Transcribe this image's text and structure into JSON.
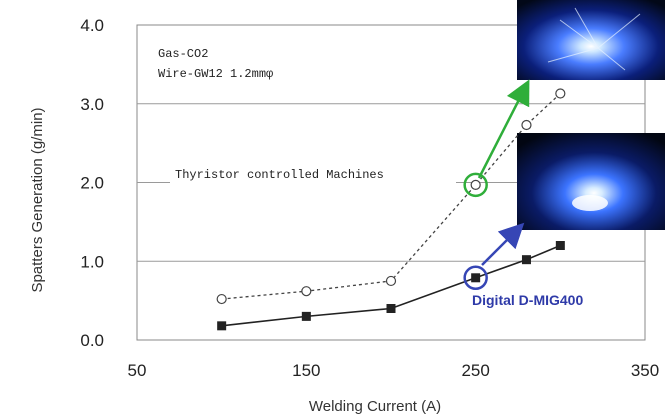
{
  "chart_data": {
    "type": "line",
    "xlabel": "Welding Current (A)",
    "ylabel": "Spatters Generation (g/min)",
    "xlim": [
      50,
      350
    ],
    "ylim": [
      0,
      4
    ],
    "x_ticks": [
      "50",
      "150",
      "250",
      "350"
    ],
    "y_ticks": [
      "0.0",
      "1.0",
      "2.0",
      "3.0",
      "4.0"
    ],
    "conditions": [
      "Gas-CO2",
      "Wire-GW12  1.2mmφ"
    ],
    "series": [
      {
        "name": "Thyristor controlled Machines",
        "style": "dashed-open-circle",
        "color": "#444444",
        "points": [
          [
            100,
            0.52
          ],
          [
            150,
            0.62
          ],
          [
            200,
            0.75
          ],
          [
            250,
            1.97
          ],
          [
            280,
            2.73
          ],
          [
            300,
            3.13
          ]
        ]
      },
      {
        "name": "Digital D-MIG400",
        "style": "solid-filled-square",
        "color": "#222222",
        "points": [
          [
            100,
            0.18
          ],
          [
            150,
            0.3
          ],
          [
            200,
            0.4
          ],
          [
            250,
            0.79
          ],
          [
            280,
            1.02
          ],
          [
            300,
            1.2
          ]
        ]
      }
    ],
    "annotations": [
      {
        "x": 250,
        "y": 1.97,
        "color": "#2fae3a",
        "arrow": "to-top-photo"
      },
      {
        "x": 250,
        "y": 0.79,
        "color": "#3646b5",
        "arrow": "to-bottom-photo"
      }
    ],
    "grid": "horizontal",
    "colors": {
      "green": "#2fae3a",
      "blue": "#3646b5"
    },
    "photos": [
      "arc-photo-thyristor",
      "arc-photo-digital"
    ]
  }
}
